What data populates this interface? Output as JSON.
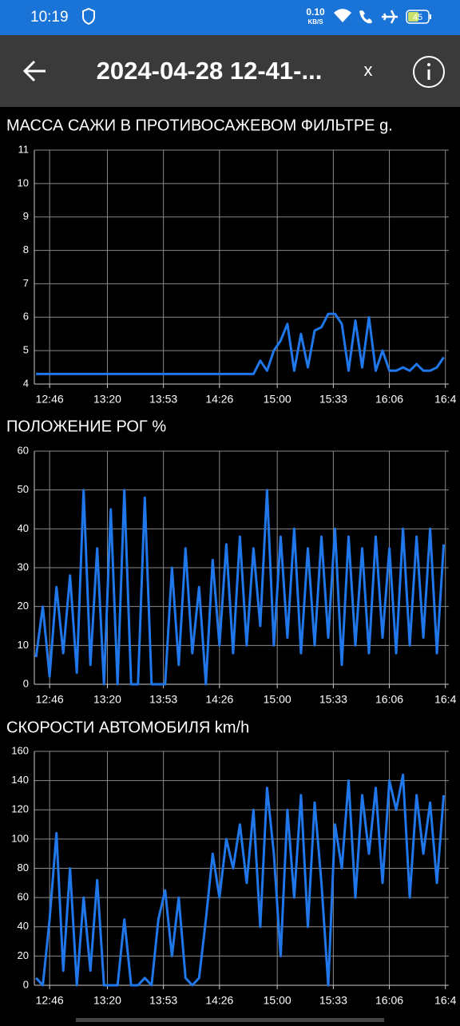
{
  "status_bar": {
    "time": "10:19",
    "net_speed": "0.10",
    "net_unit": "KB/S",
    "battery": "45"
  },
  "app_bar": {
    "title": "2024-04-28 12-41-...",
    "close": "x"
  },
  "chart_data": [
    {
      "type": "line",
      "title": "МАССА САЖИ В ПРОТИВОСАЖЕВОМ ФИЛЬТРЕ  g.",
      "grid": true,
      "xlim": [
        757,
        1001
      ],
      "xticks": [
        {
          "value": 766,
          "label": "12:46"
        },
        {
          "value": 800,
          "label": "13:20"
        },
        {
          "value": 833,
          "label": "13:53"
        },
        {
          "value": 866,
          "label": "14:26"
        },
        {
          "value": 900,
          "label": "15:00"
        },
        {
          "value": 933,
          "label": "15:33"
        },
        {
          "value": 966,
          "label": "16:06"
        },
        {
          "value": 999,
          "label": "16:4"
        }
      ],
      "ylim": [
        4,
        11
      ],
      "yticks": [
        4,
        5,
        6,
        7,
        8,
        9,
        10,
        11
      ],
      "x": [
        758,
        762,
        766,
        770,
        774,
        778,
        782,
        786,
        790,
        794,
        798,
        802,
        806,
        810,
        814,
        818,
        822,
        826,
        830,
        834,
        838,
        842,
        846,
        850,
        854,
        858,
        862,
        866,
        870,
        874,
        878,
        882,
        886,
        890,
        894,
        898,
        902,
        906,
        910,
        914,
        918,
        922,
        926,
        930,
        934,
        938,
        942,
        946,
        950,
        954,
        958,
        962,
        966,
        970,
        974,
        978,
        982,
        986,
        990,
        994,
        998
      ],
      "series": [
        {
          "color": "#1f77ea",
          "values": [
            4.3,
            4.3,
            4.3,
            4.3,
            4.3,
            4.3,
            4.3,
            4.3,
            4.3,
            4.3,
            4.3,
            4.3,
            4.3,
            4.3,
            4.3,
            4.3,
            4.3,
            4.3,
            4.3,
            4.3,
            4.3,
            4.3,
            4.3,
            4.3,
            4.3,
            4.3,
            4.3,
            4.3,
            4.3,
            4.3,
            4.3,
            4.3,
            4.3,
            4.7,
            4.4,
            5.0,
            5.3,
            5.8,
            4.4,
            5.5,
            4.5,
            5.6,
            5.7,
            6.1,
            6.1,
            5.8,
            4.4,
            5.9,
            4.5,
            6.0,
            4.4,
            5.0,
            4.4,
            4.4,
            4.5,
            4.4,
            4.6,
            4.4,
            4.4,
            4.5,
            4.8
          ]
        }
      ]
    },
    {
      "type": "line",
      "title": "ПОЛОЖЕНИЕ РОГ  %",
      "grid": true,
      "xlim": [
        757,
        1001
      ],
      "xticks": [
        {
          "value": 766,
          "label": "12:46"
        },
        {
          "value": 800,
          "label": "13:20"
        },
        {
          "value": 833,
          "label": "13:53"
        },
        {
          "value": 866,
          "label": "14:26"
        },
        {
          "value": 900,
          "label": "15:00"
        },
        {
          "value": 933,
          "label": "15:33"
        },
        {
          "value": 966,
          "label": "16:06"
        },
        {
          "value": 999,
          "label": "16:4"
        }
      ],
      "ylim": [
        0,
        60
      ],
      "yticks": [
        0,
        10,
        20,
        30,
        40,
        50,
        60
      ],
      "x": [
        758,
        762,
        766,
        770,
        774,
        778,
        782,
        786,
        790,
        794,
        798,
        802,
        806,
        810,
        814,
        818,
        822,
        826,
        830,
        834,
        838,
        842,
        846,
        850,
        854,
        858,
        862,
        866,
        870,
        874,
        878,
        882,
        886,
        890,
        894,
        898,
        902,
        906,
        910,
        914,
        918,
        922,
        926,
        930,
        934,
        938,
        942,
        946,
        950,
        954,
        958,
        962,
        966,
        970,
        974,
        978,
        982,
        986,
        990,
        994,
        998
      ],
      "series": [
        {
          "color": "#1f77ea",
          "values": [
            7,
            20,
            2,
            25,
            8,
            28,
            3,
            50,
            5,
            35,
            0,
            45,
            0,
            50,
            0,
            0,
            48,
            0,
            0,
            0,
            30,
            5,
            35,
            8,
            25,
            0,
            32,
            10,
            36,
            8,
            38,
            10,
            35,
            15,
            50,
            10,
            38,
            12,
            40,
            8,
            35,
            10,
            38,
            12,
            40,
            5,
            38,
            10,
            35,
            8,
            38,
            12,
            35,
            8,
            40,
            10,
            38,
            12,
            40,
            8,
            36
          ]
        }
      ]
    },
    {
      "type": "line",
      "title": "СКОРОСТИ АВТОМОБИЛЯ  km/h",
      "grid": true,
      "xlim": [
        757,
        1001
      ],
      "xticks": [
        {
          "value": 766,
          "label": "12:46"
        },
        {
          "value": 800,
          "label": "13:20"
        },
        {
          "value": 833,
          "label": "13:53"
        },
        {
          "value": 866,
          "label": "14:26"
        },
        {
          "value": 900,
          "label": "15:00"
        },
        {
          "value": 933,
          "label": "15:33"
        },
        {
          "value": 966,
          "label": "16:06"
        },
        {
          "value": 999,
          "label": "16:4"
        }
      ],
      "ylim": [
        0,
        160
      ],
      "yticks": [
        0,
        20,
        40,
        60,
        80,
        100,
        120,
        140,
        160
      ],
      "x": [
        758,
        762,
        766,
        770,
        774,
        778,
        782,
        786,
        790,
        794,
        798,
        802,
        806,
        810,
        814,
        818,
        822,
        826,
        830,
        834,
        838,
        842,
        846,
        850,
        854,
        858,
        862,
        866,
        870,
        874,
        878,
        882,
        886,
        890,
        894,
        898,
        902,
        906,
        910,
        914,
        918,
        922,
        926,
        930,
        934,
        938,
        942,
        946,
        950,
        954,
        958,
        962,
        966,
        970,
        974,
        978,
        982,
        986,
        990,
        994,
        998
      ],
      "series": [
        {
          "color": "#1f77ea",
          "values": [
            5,
            0,
            45,
            104,
            10,
            80,
            0,
            60,
            10,
            72,
            0,
            0,
            0,
            45,
            0,
            0,
            5,
            0,
            45,
            65,
            20,
            60,
            5,
            0,
            5,
            45,
            90,
            60,
            100,
            80,
            110,
            70,
            120,
            40,
            135,
            90,
            20,
            120,
            60,
            130,
            40,
            125,
            70,
            0,
            110,
            80,
            140,
            60,
            130,
            90,
            135,
            70,
            140,
            120,
            144,
            60,
            130,
            90,
            125,
            70,
            130
          ]
        }
      ]
    }
  ]
}
